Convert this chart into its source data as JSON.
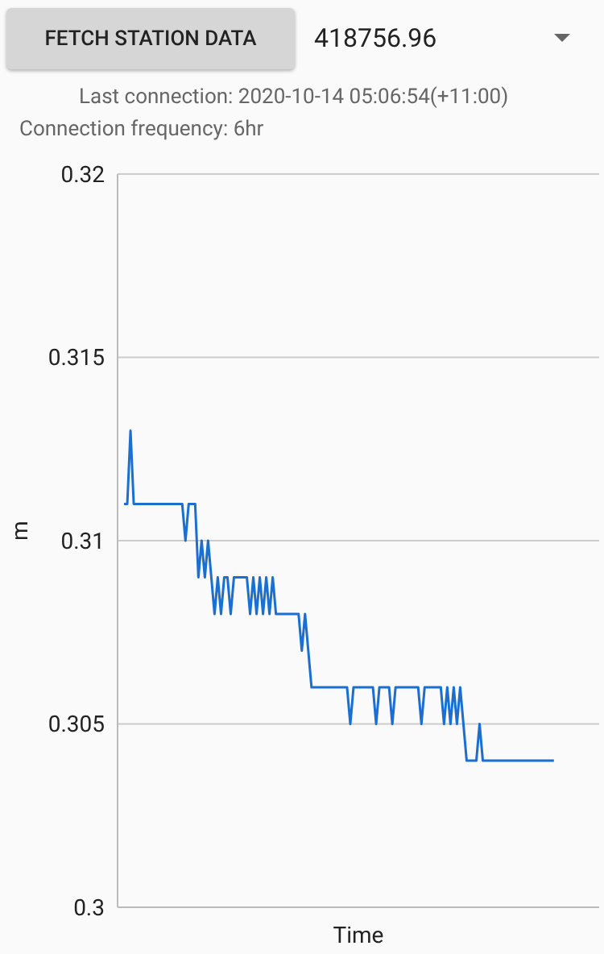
{
  "chart_data": {
    "type": "line",
    "annotations": [
      "FETCH STATION DATA",
      "418756.96",
      "Last connection: 2020-10-14 05:06:54(+11:00)",
      "Connection frequency: 6hr"
    ],
    "xlabel": "Time",
    "ylabel": "m",
    "categories": [
      null,
      null,
      null,
      null,
      null,
      null,
      null,
      null,
      null,
      null,
      null,
      null,
      null,
      null,
      null,
      null,
      null,
      null,
      null,
      null,
      null,
      null,
      null,
      null,
      null,
      null,
      null,
      null,
      null,
      null,
      null,
      null,
      null,
      null,
      null,
      null,
      null,
      null,
      null,
      null,
      null,
      null,
      null,
      null,
      null,
      null,
      null,
      null,
      null,
      null,
      null,
      null,
      null,
      null,
      null,
      null,
      null,
      null,
      null,
      null,
      null,
      null,
      null,
      null,
      null,
      null,
      null,
      null,
      null,
      null,
      null,
      null,
      null,
      null,
      null,
      null,
      null,
      null,
      null,
      null,
      null,
      null,
      null,
      null,
      null,
      null,
      null,
      null,
      null,
      null,
      null,
      null,
      null,
      null,
      null,
      null,
      null,
      null,
      null,
      null,
      null,
      null,
      null,
      null,
      null,
      null,
      null,
      null,
      null,
      null,
      null,
      null,
      null,
      null,
      null,
      null,
      null,
      null,
      null,
      null,
      null,
      null,
      null,
      null,
      null,
      null,
      null,
      null,
      null,
      null,
      null,
      null,
      null,
      null,
      null,
      null,
      null,
      null,
      null,
      null,
      null,
      null,
      null,
      null,
      null,
      null,
      null,
      null,
      null,
      null
    ],
    "series": [
      {
        "color": "#1a6fd0",
        "values": [
          null,
          null,
          0.311,
          0.311,
          0.313,
          0.311,
          0.311,
          0.311,
          0.311,
          0.311,
          0.311,
          0.311,
          0.311,
          0.311,
          0.311,
          0.311,
          0.311,
          0.311,
          0.311,
          0.311,
          0.311,
          0.31,
          0.311,
          0.311,
          0.311,
          0.309,
          0.31,
          0.309,
          0.31,
          0.309,
          0.308,
          0.309,
          0.308,
          0.309,
          0.309,
          0.308,
          0.309,
          0.309,
          0.309,
          0.309,
          0.309,
          0.308,
          0.309,
          0.308,
          0.309,
          0.308,
          0.309,
          0.308,
          0.309,
          0.308,
          0.308,
          0.308,
          0.308,
          0.308,
          0.308,
          0.308,
          0.308,
          0.307,
          0.308,
          0.307,
          0.306,
          0.306,
          0.306,
          0.306,
          0.306,
          0.306,
          0.306,
          0.306,
          0.306,
          0.306,
          0.306,
          0.306,
          0.305,
          0.306,
          0.306,
          0.306,
          0.306,
          0.306,
          0.306,
          0.306,
          0.305,
          0.306,
          0.306,
          0.306,
          0.306,
          0.305,
          0.306,
          0.306,
          0.306,
          0.306,
          0.306,
          0.306,
          0.306,
          0.306,
          0.305,
          0.306,
          0.306,
          0.306,
          0.306,
          0.306,
          0.306,
          0.305,
          0.306,
          0.305,
          0.306,
          0.305,
          0.306,
          0.305,
          0.304,
          0.304,
          0.304,
          0.304,
          0.305,
          0.304,
          0.304,
          0.304,
          0.304,
          0.304,
          0.304,
          0.304,
          0.304,
          0.304,
          0.304,
          0.304,
          0.304,
          0.304,
          0.304,
          0.304,
          0.304,
          0.304,
          0.304,
          0.304,
          0.304,
          0.304,
          0.304,
          0.304,
          null,
          null,
          null,
          null,
          null,
          null,
          null,
          null,
          null,
          null,
          null,
          null,
          null,
          null
        ]
      }
    ],
    "ylim": [
      0.3,
      0.32
    ],
    "yticks": [
      0.3,
      0.305,
      0.31,
      0.315,
      0.32
    ],
    "grid": "y",
    "tick_labels": "y",
    "marker": "none",
    "line_style": "solid",
    "legend": false
  }
}
